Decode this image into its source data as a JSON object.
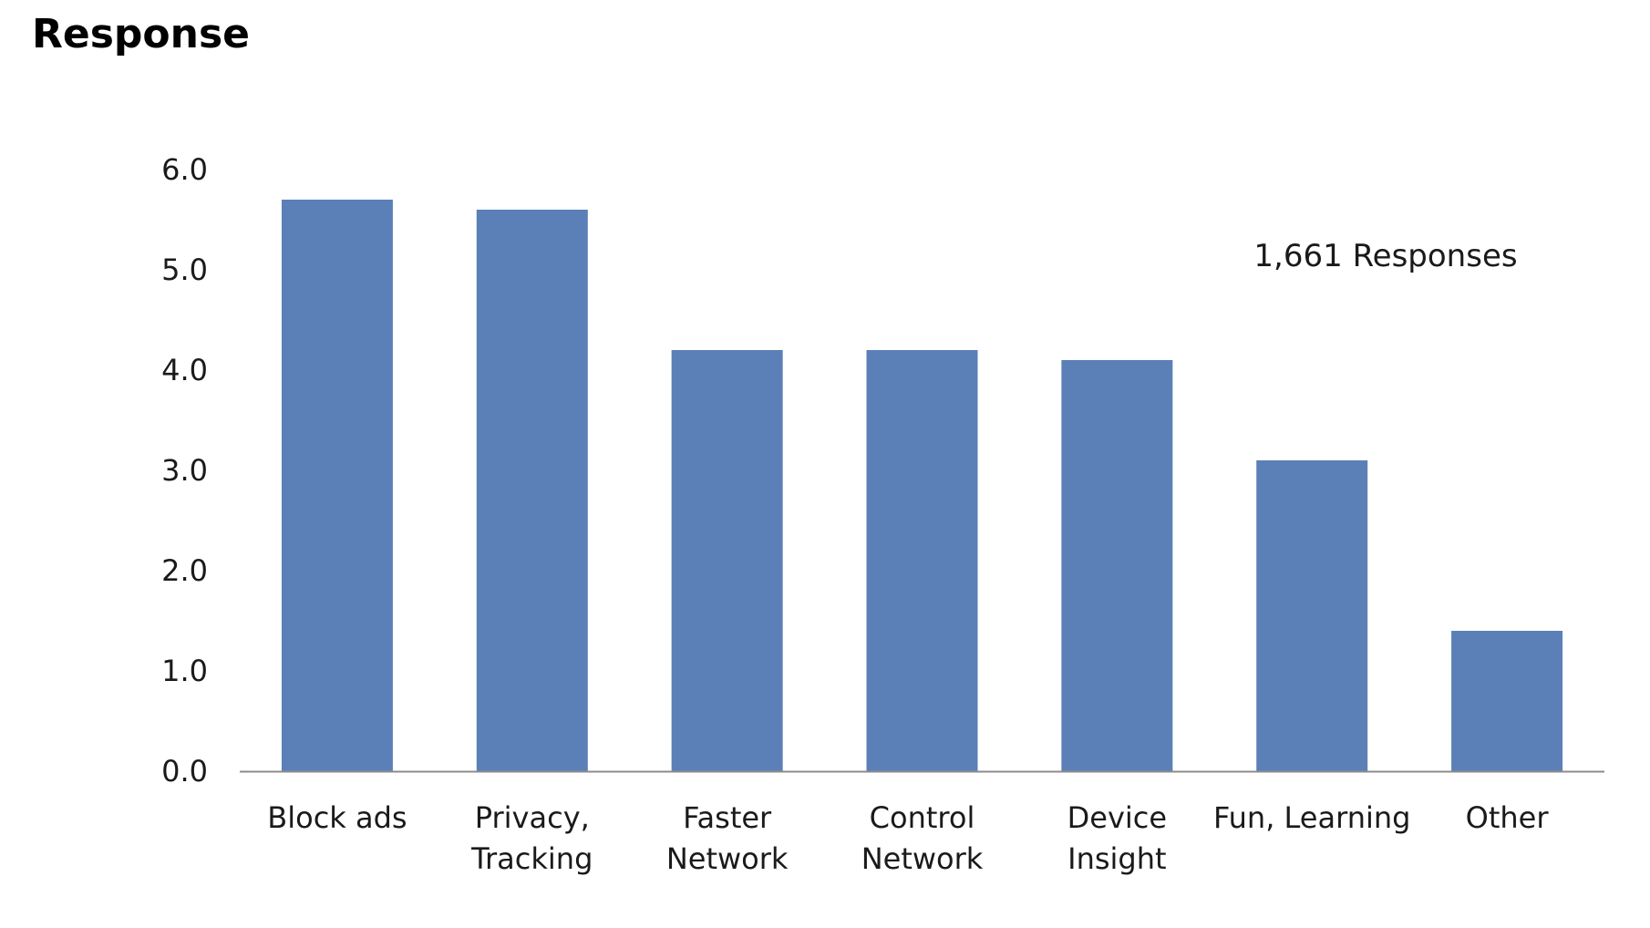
{
  "page": {
    "heading": "Response"
  },
  "chart_data": {
    "type": "bar",
    "title": "",
    "xlabel": "",
    "ylabel": "",
    "categories": [
      [
        "Block ads"
      ],
      [
        "Privacy,",
        "Tracking"
      ],
      [
        "Faster",
        "Network"
      ],
      [
        "Control",
        "Network"
      ],
      [
        "Device",
        "Insight"
      ],
      [
        "Fun, Learning"
      ],
      [
        "Other"
      ]
    ],
    "values": [
      5.7,
      5.6,
      4.2,
      4.2,
      4.1,
      3.1,
      1.4
    ],
    "ylim": [
      0,
      6
    ],
    "yticks": [
      "0.0",
      "1.0",
      "2.0",
      "3.0",
      "4.0",
      "5.0",
      "6.0"
    ],
    "grid": false,
    "annotation": "1,661 Responses",
    "bar_color": "#5b80b8",
    "axis_color": "#8c8c8c"
  }
}
